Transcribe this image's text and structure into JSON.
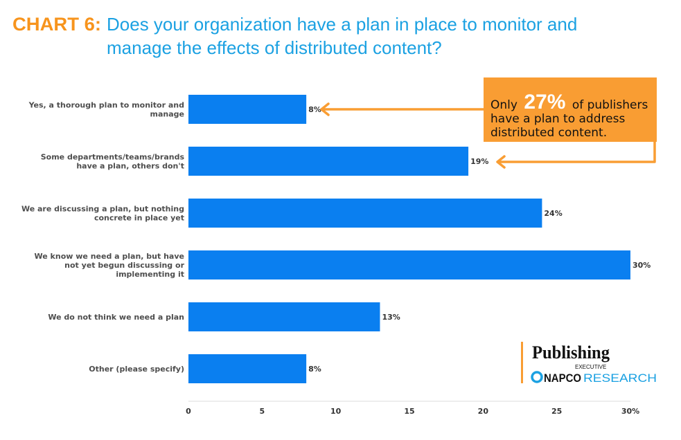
{
  "chart_data": {
    "type": "bar",
    "orientation": "horizontal",
    "title_prefix": "CHART 6:",
    "title_lines": [
      "Does your organization have a plan in place to monitor and",
      "manage the effects of distributed content?"
    ],
    "categories": [
      [
        "Yes, a thorough plan to monitor and",
        "manage"
      ],
      [
        "Some departments/teams/brands",
        "have a plan, others don't"
      ],
      [
        "We are discussing a plan, but nothing",
        "concrete in place yet"
      ],
      [
        "We know we need a plan, but have",
        "not yet begun discussing or",
        "implementing it"
      ],
      [
        "We do not think we need a plan"
      ],
      [
        "Other (please specify)"
      ]
    ],
    "values": [
      8,
      19,
      24,
      30,
      13,
      8
    ],
    "value_labels": [
      "8%",
      "19%",
      "24%",
      "30%",
      "13%",
      "8%"
    ],
    "xlim": [
      0,
      30
    ],
    "ticks": [
      0,
      5,
      10,
      15,
      20,
      25,
      30
    ],
    "tick_labels": [
      "0",
      "5",
      "10",
      "15",
      "20",
      "25",
      "30%"
    ],
    "bar_color": "#0a7ff0",
    "annotation": {
      "pre": "Only",
      "big": "27%",
      "post": "of publishers",
      "lines": [
        "have a plan to address",
        "distributed content."
      ]
    }
  },
  "colors": {
    "orange": "#f7941d",
    "blue": "#1ba1e2",
    "callout": "#f99d33"
  },
  "logo": {
    "publishing": "Publishing",
    "executive": "EXECUTIVE",
    "napco": "NAPCO",
    "research": "RESEARCH"
  }
}
